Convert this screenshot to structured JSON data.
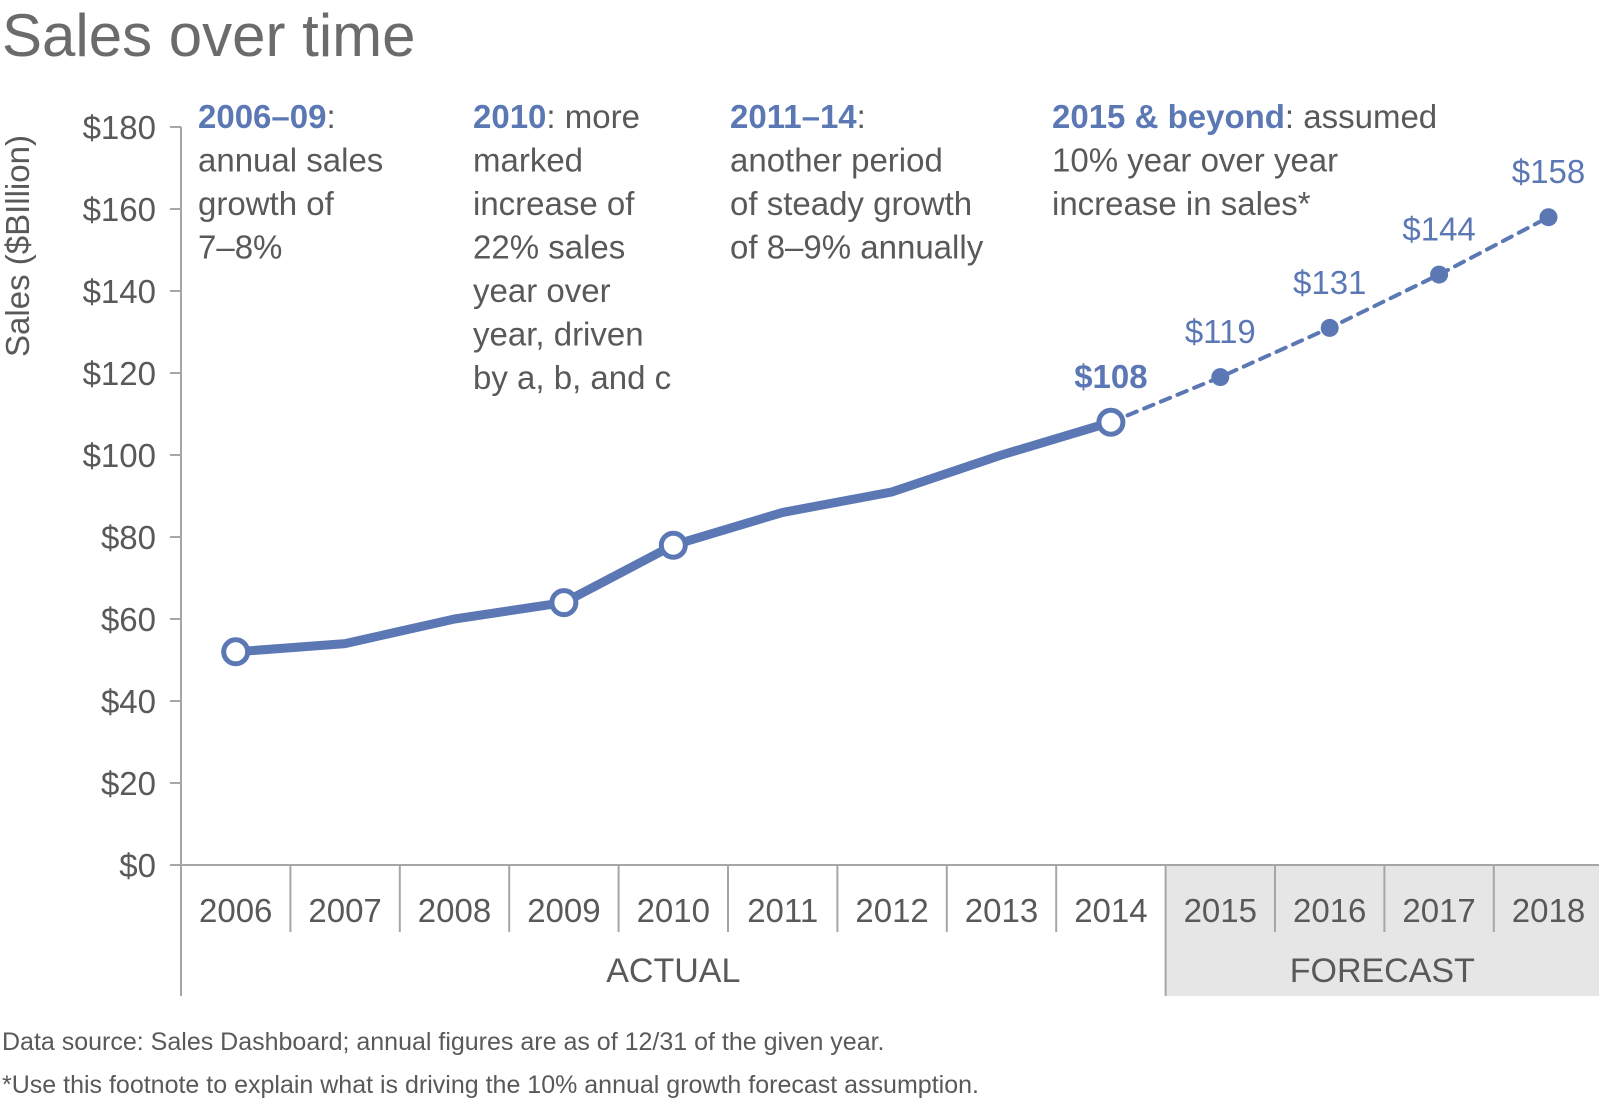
{
  "title": "Sales over time",
  "footnotes": [
    "Data source: Sales Dashboard; annual figures are as of 12/31 of the given year.",
    "*Use this footnote to explain what is driving the 10% annual growth forecast assumption."
  ],
  "colors": {
    "series": "#5b78b5",
    "axis": "#a6a6a6",
    "text": "#595959",
    "forecast_band": "#e6e6e6"
  },
  "annotations": [
    {
      "bold": "2006–09",
      "rest": ":",
      "lines": [
        "annual sales",
        "growth of",
        "7–8%"
      ]
    },
    {
      "bold": "2010",
      "rest": ": more",
      "lines": [
        "marked",
        "increase of",
        "22% sales",
        "year over",
        "year, driven",
        "by a, b, and c"
      ]
    },
    {
      "bold": "2011–14",
      "rest": ":",
      "lines": [
        "another period",
        "of steady growth",
        "of 8–9% annually"
      ]
    },
    {
      "bold": "2015 & beyond",
      "rest": ": assumed",
      "lines": [
        "10% year over year",
        "increase in sales*"
      ]
    }
  ],
  "chart_data": {
    "type": "line",
    "title": "Sales over time",
    "ylabel": "Sales ($BIllion)",
    "xlabel": "",
    "ylim": [
      0,
      180
    ],
    "yticks": [
      0,
      20,
      40,
      60,
      80,
      100,
      120,
      140,
      160,
      180
    ],
    "ytick_labels": [
      "$0",
      "$20",
      "$40",
      "$60",
      "$80",
      "$100",
      "$120",
      "$140",
      "$160",
      "$180"
    ],
    "categories": [
      "2006",
      "2007",
      "2008",
      "2009",
      "2010",
      "2011",
      "2012",
      "2013",
      "2014",
      "2015",
      "2016",
      "2017",
      "2018"
    ],
    "groups": [
      {
        "label": "ACTUAL",
        "start": 0,
        "end": 8
      },
      {
        "label": "FORECAST",
        "start": 9,
        "end": 12
      }
    ],
    "series": [
      {
        "name": "Actual",
        "style": "solid",
        "x": [
          "2006",
          "2007",
          "2008",
          "2009",
          "2010",
          "2011",
          "2012",
          "2013",
          "2014"
        ],
        "values": [
          52,
          54,
          60,
          64,
          78,
          86,
          91,
          100,
          108
        ],
        "open_markers": [
          "2006",
          "2009",
          "2010",
          "2014"
        ]
      },
      {
        "name": "Forecast",
        "style": "dashed",
        "x": [
          "2014",
          "2015",
          "2016",
          "2017",
          "2018"
        ],
        "values": [
          108,
          119,
          131,
          144,
          158
        ],
        "filled_markers": [
          "2015",
          "2016",
          "2017",
          "2018"
        ]
      }
    ],
    "data_labels": [
      {
        "x": "2014",
        "value": 108,
        "text": "$108",
        "bold": true
      },
      {
        "x": "2015",
        "value": 119,
        "text": "$119",
        "bold": false
      },
      {
        "x": "2016",
        "value": 131,
        "text": "$131",
        "bold": false
      },
      {
        "x": "2017",
        "value": 144,
        "text": "$144",
        "bold": false
      },
      {
        "x": "2018",
        "value": 158,
        "text": "$158",
        "bold": false
      }
    ],
    "grid": false,
    "legend": "none"
  }
}
